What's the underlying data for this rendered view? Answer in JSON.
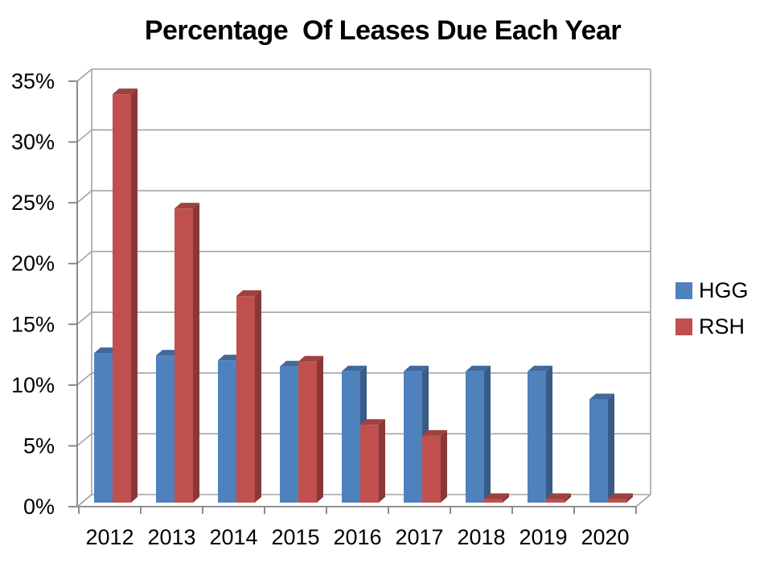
{
  "title": "Percentage  Of Leases Due Each Year",
  "chart_data": {
    "type": "bar",
    "style": "3d-clustered",
    "title": "Percentage  Of Leases Due Each Year",
    "categories": [
      "2012",
      "2013",
      "2014",
      "2015",
      "2016",
      "2017",
      "2018",
      "2019",
      "2020"
    ],
    "series": [
      {
        "name": "HGG",
        "color": "#4F81BD",
        "values": [
          12.3,
          12.1,
          11.7,
          11.2,
          10.8,
          10.8,
          10.8,
          10.8,
          8.5
        ]
      },
      {
        "name": "RSH",
        "color": "#C0504D",
        "values": [
          33.6,
          24.2,
          17.0,
          11.6,
          6.4,
          5.5,
          0.3,
          0.3,
          0.3
        ]
      }
    ],
    "xlabel": "",
    "ylabel": "",
    "ylim": [
      0,
      35
    ],
    "ytick_step": 5,
    "ytick_suffix": "%",
    "ytick_labels": [
      "0%",
      "5%",
      "10%",
      "15%",
      "20%",
      "25%",
      "30%",
      "35%"
    ],
    "grid": true,
    "legend_position": "right"
  },
  "colors": {
    "grid_line": "#A3A3A3",
    "axis_line": "#808080",
    "text": "#000000",
    "background": "#FFFFFF"
  }
}
